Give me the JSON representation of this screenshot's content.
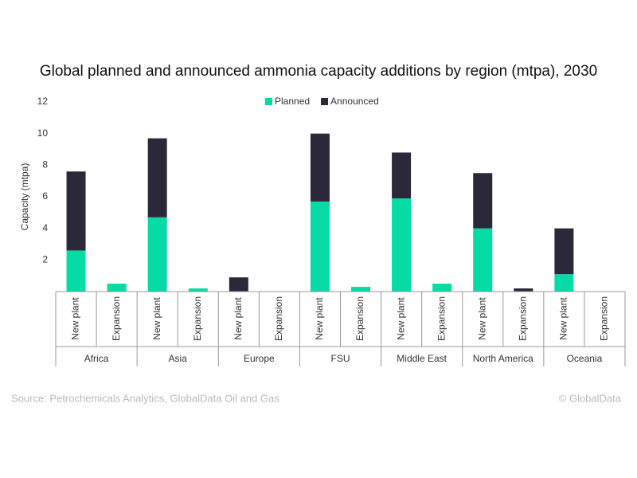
{
  "chart_data": {
    "type": "stacked-bar",
    "title": "Global planned and announced ammonia capacity additions by region (mtpa), 2030",
    "y_label": "Capacity (mtpa)",
    "groups": [
      "Africa",
      "Asia",
      "Europe",
      "FSU",
      "Middle East",
      "North America",
      "Oceania"
    ],
    "categories": [
      "New plant",
      "Expansion",
      "New plant",
      "Expansion",
      "New plant",
      "Expansion",
      "New plant",
      "Expansion",
      "New plant",
      "Expansion",
      "New plant",
      "Expansion",
      "New plant",
      "Expansion"
    ],
    "series": [
      {
        "name": "Planned",
        "color": "#05dba4",
        "values": [
          2.6,
          0.5,
          4.7,
          0.2,
          0,
          0,
          5.7,
          0.3,
          5.9,
          0.5,
          4.0,
          0,
          1.1,
          0
        ]
      },
      {
        "name": "Announced",
        "color": "#2a2839",
        "values": [
          5.0,
          0,
          5.0,
          0,
          0.9,
          0,
          4.3,
          0,
          2.9,
          0,
          3.5,
          0.2,
          2.9,
          0
        ]
      }
    ],
    "ylim": [
      0,
      12
    ],
    "yticks": [
      2,
      4,
      6,
      8,
      10,
      12
    ],
    "grid": false,
    "legend": "top",
    "source": "Source: Petrochemicals Analytics, GlobalData Oil and Gas",
    "credit": "© GlobalData"
  }
}
